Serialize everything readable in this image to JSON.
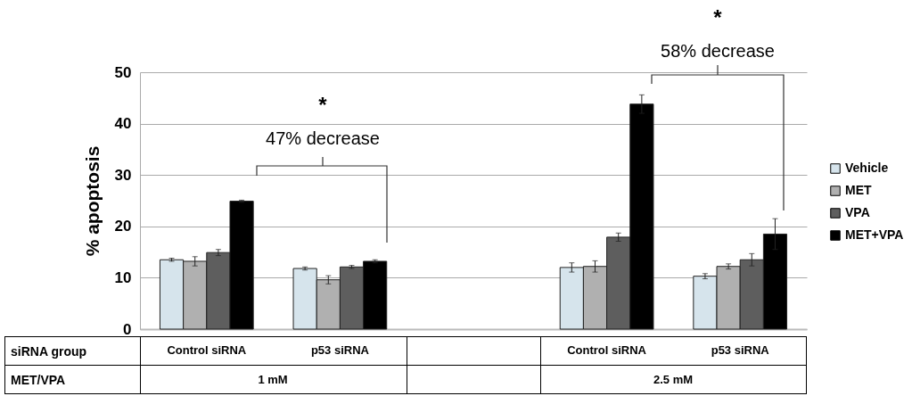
{
  "chart_data": {
    "type": "bar",
    "ylabel": "% apoptosis",
    "categories": [
      "Control siRNA",
      "p53 siRNA",
      null,
      "Control siRNA",
      "p53 siRNA"
    ],
    "series": [
      {
        "name": "Vehicle",
        "color": "#d6e4ec",
        "values": [
          13.5,
          11.8,
          null,
          12.0,
          10.3
        ],
        "errors": [
          0.3,
          0.3,
          null,
          0.9,
          0.5
        ]
      },
      {
        "name": "MET",
        "color": "#b0b0b0",
        "values": [
          13.2,
          9.6,
          null,
          12.2,
          12.2
        ],
        "errors": [
          0.9,
          0.8,
          null,
          1.1,
          0.5
        ]
      },
      {
        "name": "VPA",
        "color": "#5e5e5e",
        "values": [
          14.9,
          12.1,
          null,
          17.9,
          13.5
        ],
        "errors": [
          0.6,
          0.3,
          null,
          0.8,
          1.2
        ]
      },
      {
        "name": "MET+VPA",
        "color": "#000000",
        "values": [
          24.9,
          13.2,
          null,
          43.8,
          18.5
        ],
        "errors": [
          0.2,
          0.3,
          null,
          1.8,
          3.0
        ]
      }
    ],
    "ylim": [
      0,
      50
    ],
    "yticks": [
      0,
      10,
      20,
      30,
      40,
      50
    ],
    "grid": "y",
    "legend": "right",
    "annotations": [
      "siRNA group",
      "MET/VPA",
      "1 mM",
      "2.5 mM",
      "*",
      "47% decrease",
      "*",
      "58% decrease"
    ]
  }
}
